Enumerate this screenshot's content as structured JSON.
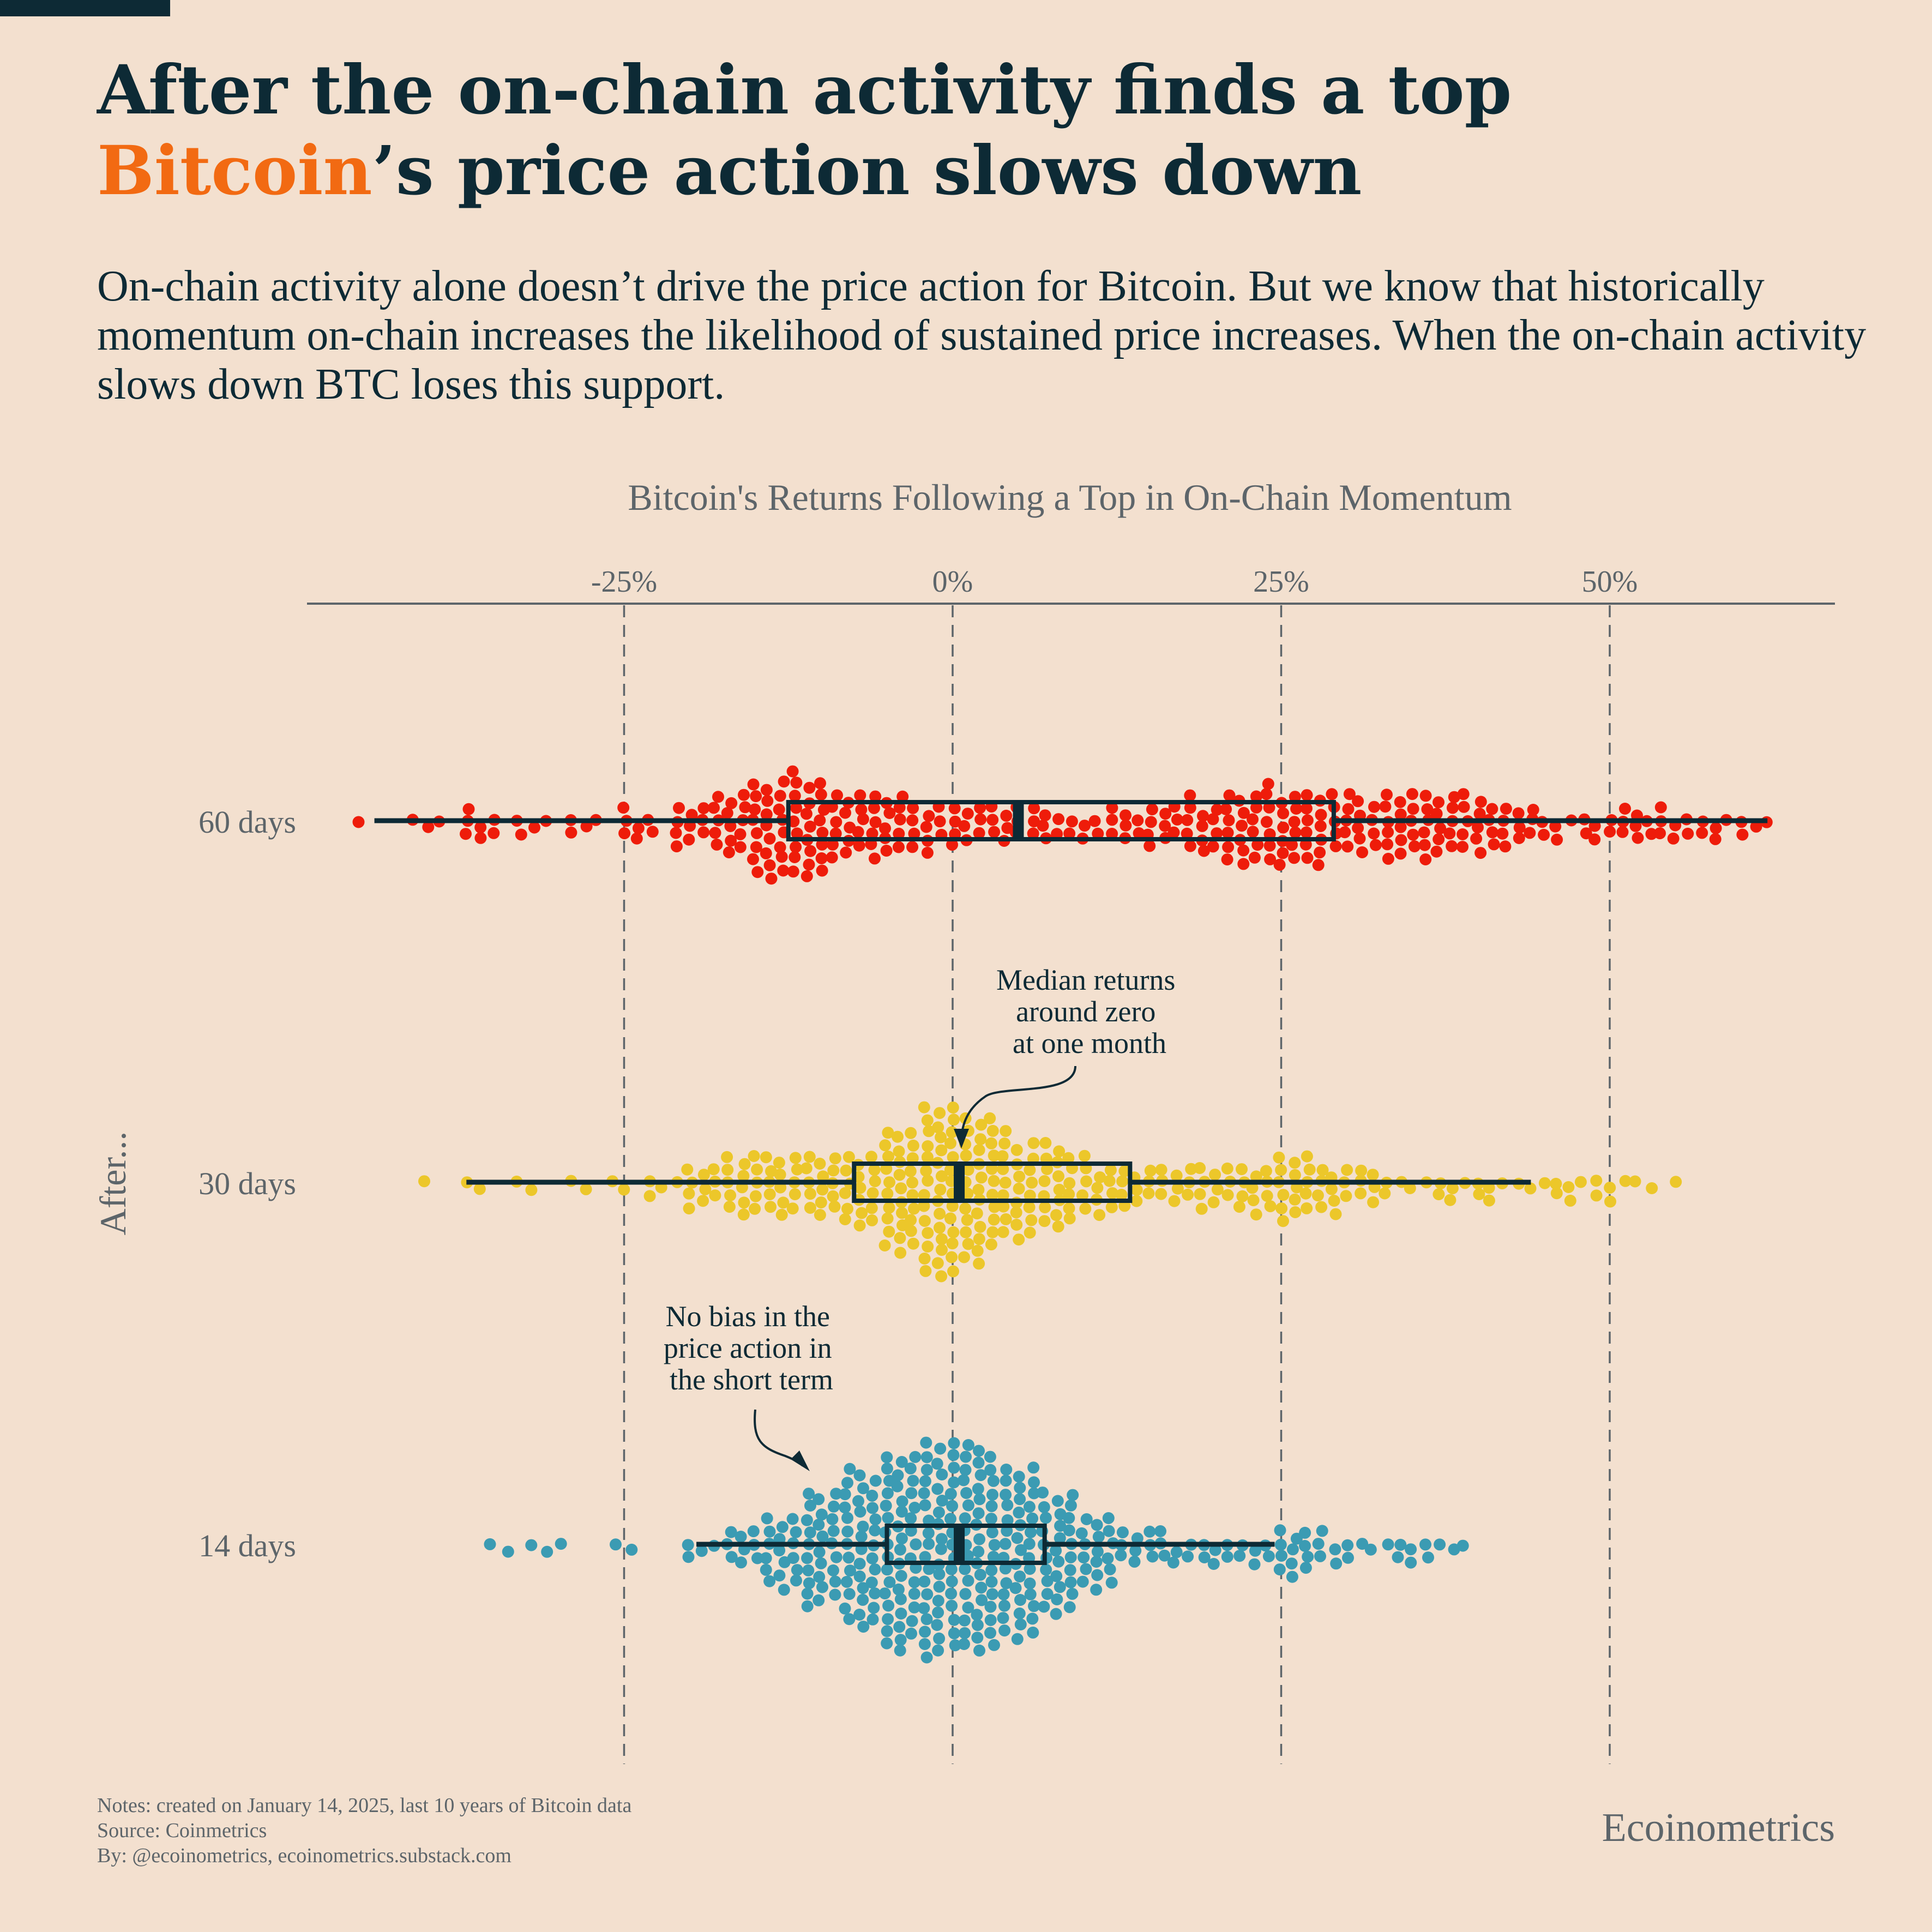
{
  "header": {
    "title_part1": "After the on-chain activity finds a top ",
    "title_highlight": "Bitcoin",
    "title_part2": "’s price action slows down",
    "subtitle": "On-chain activity alone doesn’t drive the price action for Bitcoin. But we know that historically momentum on-chain increases the likelihood of sustained price increases. When the on-chain activity slows down BTC loses this support."
  },
  "colors": {
    "background": "#f3e0cf",
    "title": "#0d2a35",
    "highlight": "#f26a12",
    "series_60": "#ee1c0a",
    "series_30": "#ecc72a",
    "series_14": "#3b9bb3",
    "box": "#0d2a35",
    "muted_text": "#5d656a"
  },
  "chart_data": {
    "type": "beeswarm",
    "title": "Bitcoin's Returns Following a Top in  On-Chain Momentum",
    "ylabel": "After...",
    "x_ticks": [
      "-25%",
      "0%",
      "25%",
      "50%"
    ],
    "x_tick_values": [
      -25,
      0,
      25,
      50
    ],
    "xlim": [
      -49,
      67
    ],
    "grid": "dashed vertical lines at ticks",
    "series": [
      {
        "name": "60 days",
        "color": "#ee1c0a",
        "box": {
          "whisker_low": -44,
          "q1": -12.5,
          "median": 5,
          "q3": 29,
          "whisker_high": 62
        },
        "distribution": [
          [
            -44,
            1
          ],
          [
            -40,
            3
          ],
          [
            -36,
            7
          ],
          [
            -32,
            4
          ],
          [
            -28,
            4
          ],
          [
            -24,
            7
          ],
          [
            -20,
            10
          ],
          [
            -17,
            15
          ],
          [
            -14,
            24
          ],
          [
            -11,
            25
          ],
          [
            -8,
            16
          ],
          [
            -5,
            16
          ],
          [
            -2,
            11
          ],
          [
            1,
            10
          ],
          [
            4,
            9
          ],
          [
            7,
            8
          ],
          [
            10,
            6
          ],
          [
            13,
            8
          ],
          [
            16,
            10
          ],
          [
            19,
            13
          ],
          [
            22,
            18
          ],
          [
            25,
            19
          ],
          [
            28,
            17
          ],
          [
            31,
            14
          ],
          [
            34,
            16
          ],
          [
            37,
            16
          ],
          [
            40,
            14
          ],
          [
            43,
            10
          ],
          [
            46,
            5
          ],
          [
            49,
            6
          ],
          [
            52,
            8
          ],
          [
            55,
            7
          ],
          [
            58,
            5
          ],
          [
            61,
            4
          ]
        ]
      },
      {
        "name": "30 days",
        "color": "#ecc72a",
        "box": {
          "whisker_low": -37,
          "q1": -7.5,
          "median": 0.5,
          "q3": 13.5,
          "whisker_high": 44
        },
        "distribution": [
          [
            -39,
            1
          ],
          [
            -36,
            2
          ],
          [
            -32,
            2
          ],
          [
            -28,
            2
          ],
          [
            -25,
            2
          ],
          [
            -22,
            4
          ],
          [
            -19,
            10
          ],
          [
            -16,
            15
          ],
          [
            -13,
            15
          ],
          [
            -10,
            15
          ],
          [
            -7,
            18
          ],
          [
            -4,
            30
          ],
          [
            -1,
            42
          ],
          [
            2,
            35
          ],
          [
            5,
            25
          ],
          [
            8,
            20
          ],
          [
            11,
            13
          ],
          [
            14,
            10
          ],
          [
            17,
            9
          ],
          [
            20,
            10
          ],
          [
            23,
            12
          ],
          [
            26,
            16
          ],
          [
            29,
            11
          ],
          [
            32,
            8
          ],
          [
            35,
            3
          ],
          [
            38,
            5
          ],
          [
            41,
            5
          ],
          [
            44,
            3
          ],
          [
            47,
            5
          ],
          [
            50,
            5
          ],
          [
            53,
            2
          ],
          [
            56,
            1
          ]
        ]
      },
      {
        "name": "14 days",
        "color": "#3b9bb3",
        "box": {
          "whisker_low": -19.5,
          "q1": -5,
          "median": 0.5,
          "q3": 7,
          "whisker_high": 24.5
        },
        "distribution": [
          [
            -34,
            2
          ],
          [
            -31,
            3
          ],
          [
            -24.5,
            2
          ],
          [
            -19,
            4
          ],
          [
            -16,
            9
          ],
          [
            -13,
            18
          ],
          [
            -10,
            28
          ],
          [
            -7,
            38
          ],
          [
            -4,
            47
          ],
          [
            -1,
            52
          ],
          [
            2,
            50
          ],
          [
            5,
            42
          ],
          [
            8,
            30
          ],
          [
            11,
            18
          ],
          [
            14,
            9
          ],
          [
            17,
            7
          ],
          [
            20,
            6
          ],
          [
            23,
            6
          ],
          [
            26,
            12
          ],
          [
            29,
            7
          ],
          [
            32,
            3
          ],
          [
            35,
            6
          ],
          [
            38,
            3
          ]
        ]
      }
    ],
    "annotations": [
      "Median returns around zero at one month",
      "No bias in the price action in the short term"
    ]
  },
  "annotations": {
    "median_note": [
      "Median returns",
      "around zero",
      "at one month"
    ],
    "bias_note": [
      "No bias in the",
      "price action in",
      "the short term"
    ]
  },
  "footer": {
    "notes": "Notes: created on January 14, 2025, last 10 years of Bitcoin data",
    "source": "Source: Coinmetrics",
    "by": "By: @ecoinometrics, ecoinometrics.substack.com",
    "brand": "Ecoinometrics"
  }
}
